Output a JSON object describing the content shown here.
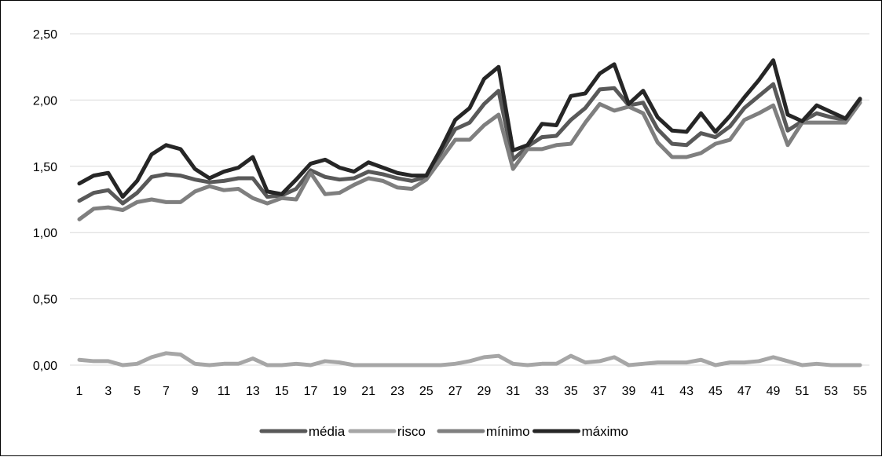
{
  "chart_data": {
    "type": "line",
    "title": "",
    "xlabel": "",
    "ylabel": "",
    "ylim": [
      0,
      2.5
    ],
    "yticks": [
      "0,00",
      "0,50",
      "1,00",
      "1,50",
      "2,00",
      "2,50"
    ],
    "xticks": [
      "1",
      "3",
      "5",
      "7",
      "9",
      "11",
      "13",
      "15",
      "17",
      "19",
      "21",
      "23",
      "25",
      "27",
      "29",
      "31",
      "33",
      "35",
      "37",
      "39",
      "41",
      "43",
      "45",
      "47",
      "49",
      "51",
      "53",
      "55"
    ],
    "grid": true,
    "legend_position": "bottom",
    "x": [
      1,
      2,
      3,
      4,
      5,
      6,
      7,
      8,
      9,
      10,
      11,
      12,
      13,
      14,
      15,
      16,
      17,
      18,
      19,
      20,
      21,
      22,
      23,
      24,
      25,
      26,
      27,
      28,
      29,
      30,
      31,
      32,
      33,
      34,
      35,
      36,
      37,
      38,
      39,
      40,
      41,
      42,
      43,
      44,
      45,
      46,
      47,
      48,
      49,
      50,
      51,
      52,
      53,
      54,
      55
    ],
    "series": [
      {
        "name": "média",
        "color": "#595959",
        "values": [
          1.24,
          1.3,
          1.32,
          1.22,
          1.3,
          1.42,
          1.44,
          1.43,
          1.4,
          1.38,
          1.39,
          1.41,
          1.41,
          1.27,
          1.28,
          1.33,
          1.47,
          1.42,
          1.4,
          1.41,
          1.46,
          1.44,
          1.41,
          1.39,
          1.42,
          1.6,
          1.78,
          1.83,
          1.97,
          2.07,
          1.55,
          1.65,
          1.72,
          1.73,
          1.85,
          1.94,
          2.08,
          2.09,
          1.96,
          1.98,
          1.78,
          1.67,
          1.66,
          1.75,
          1.72,
          1.8,
          1.94,
          2.03,
          2.12,
          1.77,
          1.84,
          1.9,
          1.87,
          1.85,
          2.0
        ]
      },
      {
        "name": "risco",
        "color": "#a6a6a6",
        "values": [
          0.04,
          0.03,
          0.03,
          0.0,
          0.01,
          0.06,
          0.09,
          0.08,
          0.01,
          0.0,
          0.01,
          0.01,
          0.05,
          0.0,
          0.0,
          0.01,
          0.0,
          0.03,
          0.02,
          0.0,
          0.0,
          0.0,
          0.0,
          0.0,
          0.0,
          0.0,
          0.01,
          0.03,
          0.06,
          0.07,
          0.01,
          0.0,
          0.01,
          0.01,
          0.07,
          0.02,
          0.03,
          0.06,
          0.0,
          0.01,
          0.02,
          0.02,
          0.02,
          0.04,
          0.0,
          0.02,
          0.02,
          0.03,
          0.06,
          0.03,
          0.0,
          0.01,
          0.0,
          0.0,
          0.0
        ]
      },
      {
        "name": "mínimo",
        "color": "#7f7f7f",
        "values": [
          1.1,
          1.18,
          1.19,
          1.17,
          1.23,
          1.25,
          1.23,
          1.23,
          1.31,
          1.35,
          1.32,
          1.33,
          1.26,
          1.22,
          1.26,
          1.25,
          1.45,
          1.29,
          1.3,
          1.36,
          1.41,
          1.39,
          1.34,
          1.33,
          1.4,
          1.55,
          1.7,
          1.7,
          1.81,
          1.89,
          1.48,
          1.63,
          1.63,
          1.66,
          1.67,
          1.83,
          1.97,
          1.92,
          1.95,
          1.9,
          1.68,
          1.57,
          1.57,
          1.6,
          1.67,
          1.7,
          1.85,
          1.9,
          1.96,
          1.66,
          1.83,
          1.83,
          1.83,
          1.83,
          1.98
        ]
      },
      {
        "name": "máximo",
        "color": "#262626",
        "values": [
          1.37,
          1.43,
          1.45,
          1.27,
          1.39,
          1.59,
          1.66,
          1.63,
          1.48,
          1.41,
          1.46,
          1.49,
          1.57,
          1.31,
          1.29,
          1.4,
          1.52,
          1.55,
          1.49,
          1.46,
          1.53,
          1.49,
          1.45,
          1.43,
          1.43,
          1.63,
          1.85,
          1.94,
          2.16,
          2.25,
          1.62,
          1.66,
          1.82,
          1.81,
          2.03,
          2.05,
          2.2,
          2.27,
          1.97,
          2.07,
          1.87,
          1.77,
          1.76,
          1.9,
          1.76,
          1.88,
          2.02,
          2.15,
          2.3,
          1.89,
          1.84,
          1.96,
          1.91,
          1.86,
          2.01
        ]
      }
    ]
  }
}
